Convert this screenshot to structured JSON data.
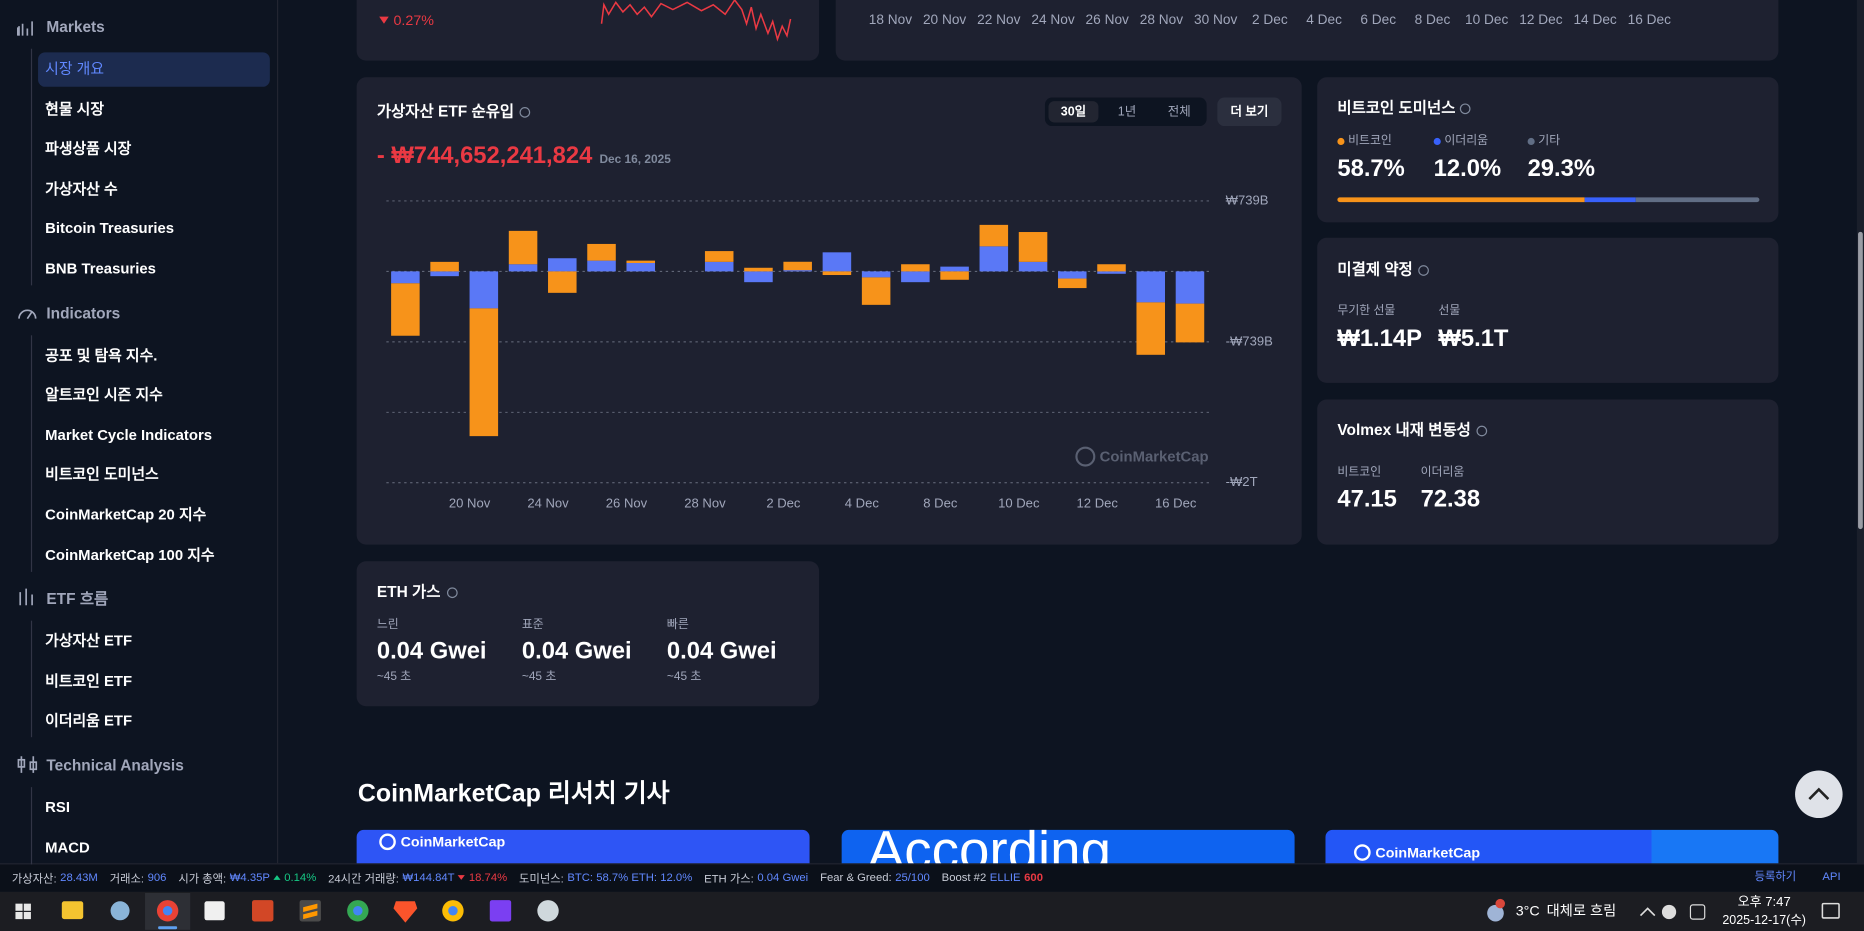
{
  "top_cards": {
    "change": "0.27%",
    "dates": [
      "18 Nov",
      "20 Nov",
      "22 Nov",
      "24 Nov",
      "26 Nov",
      "28 Nov",
      "30 Nov",
      "2 Dec",
      "4 Dec",
      "6 Dec",
      "8 Dec",
      "10 Dec",
      "12 Dec",
      "14 Dec",
      "16 Dec"
    ]
  },
  "sidebar": {
    "sections": [
      {
        "title": "Markets",
        "items": [
          "시장 개요",
          "현물 시장",
          "파생상품 시장",
          "가상자산 수",
          "Bitcoin Treasuries",
          "BNB Treasuries"
        ]
      },
      {
        "title": "Indicators",
        "items": [
          "공포 및 탐욕 지수.",
          "알트코인 시즌 지수",
          "Market Cycle Indicators",
          "비트코인 도미넌스",
          "CoinMarketCap 20 지수",
          "CoinMarketCap 100 지수"
        ]
      },
      {
        "title": "ETF 흐름",
        "items": [
          "가상자산 ETF",
          "비트코인 ETF",
          "이더리움 ETF"
        ]
      },
      {
        "title": "Technical Analysis",
        "items": [
          "RSI",
          "MACD"
        ]
      }
    ]
  },
  "chart_data": {
    "type": "bar",
    "stacked": true,
    "title": "가상자산 ETF 순유입",
    "total_label": "- ₩744,652,241,824",
    "date": "Dec 16, 2025",
    "range_buttons": [
      "30일",
      "1년",
      "전체"
    ],
    "more_button": "더 보기",
    "watermark": "CoinMarketCap",
    "categories": [
      null,
      null,
      "20 Nov",
      null,
      "24 Nov",
      null,
      "26 Nov",
      null,
      "28 Nov",
      null,
      "2 Dec",
      null,
      "4 Dec",
      null,
      "8 Dec",
      null,
      "10 Dec",
      null,
      "12 Dec",
      null,
      "16 Dec"
    ],
    "series": [
      {
        "color": "#5a78f6",
        "values": [
          -125000000000,
          -50000000000,
          -388000000000,
          75000000000,
          138000000000,
          113000000000,
          88000000000,
          null,
          100000000000,
          -113000000000,
          13000000000,
          200000000000,
          -63000000000,
          -113000000000,
          50000000000,
          263000000000,
          100000000000,
          -75000000000,
          -25000000000,
          -325000000000,
          -338000000000
        ]
      },
      {
        "color": "#f7931a",
        "values": [
          -550000000000,
          100000000000,
          -1340000000000,
          350000000000,
          -225000000000,
          175000000000,
          25000000000,
          null,
          113000000000,
          38000000000,
          88000000000,
          -38000000000,
          -288000000000,
          75000000000,
          -88000000000,
          225000000000,
          313000000000,
          -100000000000,
          75000000000,
          -550000000000,
          -406650000000
        ]
      }
    ],
    "ylim": [
      -2217000000000,
      739000000000
    ],
    "yticks": [
      {
        "value": 739000000000,
        "label": "₩739B"
      },
      {
        "value": -739000000000,
        "label": "-₩739B"
      },
      {
        "value": -2217000000000,
        "label": "-₩2T"
      }
    ],
    "grid_lines": [
      0,
      -1478000000000
    ]
  },
  "dominance": {
    "title": "비트코인 도미넌스",
    "items": [
      {
        "name": "비트코인",
        "value": 58.7,
        "label": "58.7%",
        "color": "#f7931a"
      },
      {
        "name": "이더리움",
        "value": 12.0,
        "label": "12.0%",
        "color": "#3861fb"
      },
      {
        "name": "기타",
        "value": 29.3,
        "label": "29.3%",
        "color": "#616e85"
      }
    ]
  },
  "open_interest": {
    "title": "미결제 약정",
    "items": [
      {
        "label": "무기한 선물",
        "value": "₩1.14P"
      },
      {
        "label": "선물",
        "value": "₩5.1T"
      }
    ]
  },
  "volmex": {
    "title": "Volmex 내재 변동성",
    "items": [
      {
        "label": "비트코인",
        "value": 47.15
      },
      {
        "label": "이더리움",
        "value": 72.38
      }
    ]
  },
  "eth_gas": {
    "title": "ETH 가스",
    "items": [
      {
        "label": "느린",
        "value": "0.04 Gwei",
        "time": "~45 초"
      },
      {
        "label": "표준",
        "value": "0.04 Gwei",
        "time": "~45 초"
      },
      {
        "label": "빠른",
        "value": "0.04 Gwei",
        "time": "~45 초"
      }
    ]
  },
  "research": {
    "title": "CoinMarketCap 리서치 기사",
    "cards": [
      "CoinMarketCap",
      "According",
      "CoinMarketCap"
    ]
  },
  "ticker": {
    "items": [
      {
        "label": "가상자산:",
        "value": "28.43M"
      },
      {
        "label": "거래소:",
        "value": "906"
      },
      {
        "label": "시가 총액:",
        "value": "₩4.35P",
        "change": "0.14%",
        "direction": "up"
      },
      {
        "label": "24시간 거래량:",
        "value": "₩144.84T",
        "change": "18.74%",
        "direction": "down"
      },
      {
        "label": "도미넌스:",
        "value": "BTC: 58.7% ETH: 12.0%"
      },
      {
        "label": "ETH 가스:",
        "value": "0.04 Gwei"
      },
      {
        "label": "Fear & Greed:",
        "value": "25/100"
      },
      {
        "label": "Boost #2",
        "value": "ELLIE",
        "change": "600",
        "direction": "boost"
      }
    ],
    "links": [
      "등록하기",
      "API"
    ]
  },
  "taskbar": {
    "temperature": "3°C",
    "weather": "대체로 흐림",
    "time": "오후 7:47",
    "date": "2025-12-17(수)"
  }
}
